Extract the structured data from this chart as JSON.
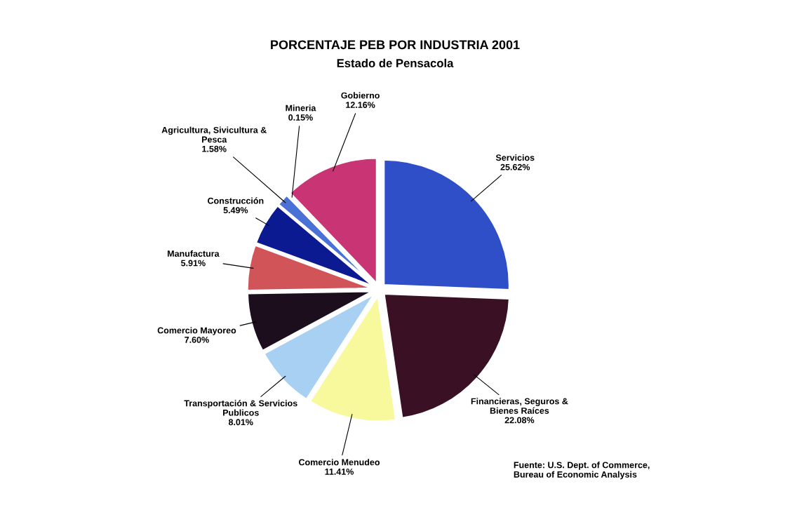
{
  "chart_data": {
    "type": "pie",
    "title": "PORCENTAJE PEB POR INDUSTRIA 2001",
    "subtitle": "Estado de Pensacola",
    "categories": [
      "Servicios",
      "Financieras, Seguros &\nBienes Raíces",
      "Comercio Menudeo",
      "Transportación & Servicios\nPublicos",
      "Comercio Mayoreo",
      "Manufactura",
      "Construcción",
      "Agricultura, Sivicultura &\nPesca",
      "Mineria",
      "Gobierno"
    ],
    "values": [
      25.62,
      22.08,
      11.41,
      8.01,
      7.6,
      5.91,
      5.49,
      1.58,
      0.15,
      12.16
    ],
    "value_labels": [
      "25.62%",
      "22.08%",
      "11.41%",
      "8.01%",
      "7.60%",
      "5.91%",
      "5.49%",
      "1.58%",
      "0.15%",
      "12.16%"
    ],
    "colors": [
      "#2f4fc8",
      "#3a1024",
      "#f8f89c",
      "#a8d0f2",
      "#1c0e1c",
      "#d05458",
      "#0c1a92",
      "#4a72d6",
      "#c4c4e4",
      "#c83474"
    ],
    "annotations": [
      "Fuente: U.S. Dept. of Commerce,\nBureau of Economic Analysis"
    ]
  }
}
